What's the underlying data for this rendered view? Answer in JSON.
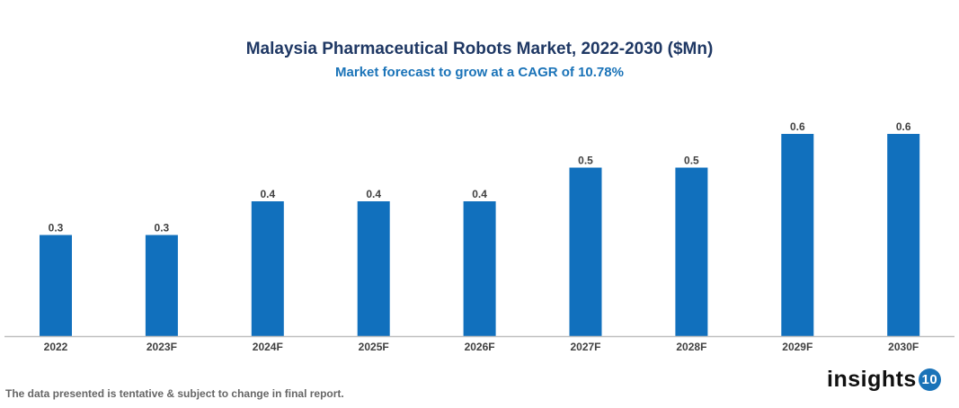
{
  "chart_data": {
    "type": "bar",
    "title": "Malaysia Pharmaceutical Robots Market, 2022-2030 ($Mn)",
    "subtitle": "Market forecast to grow at a CAGR of 10.78%",
    "categories": [
      "2022",
      "2023F",
      "2024F",
      "2025F",
      "2026F",
      "2027F",
      "2028F",
      "2029F",
      "2030F"
    ],
    "values": [
      0.3,
      0.3,
      0.4,
      0.4,
      0.4,
      0.5,
      0.5,
      0.6,
      0.6
    ],
    "xlabel": "",
    "ylabel": "",
    "ylim": [
      0,
      0.7
    ],
    "grid": false,
    "bar_color": "#1170bd",
    "axis_color": "#bfbfbf"
  },
  "footer": {
    "note": "The data presented is tentative & subject to change in final report.",
    "logo_text": "insights",
    "logo_badge": "10"
  }
}
